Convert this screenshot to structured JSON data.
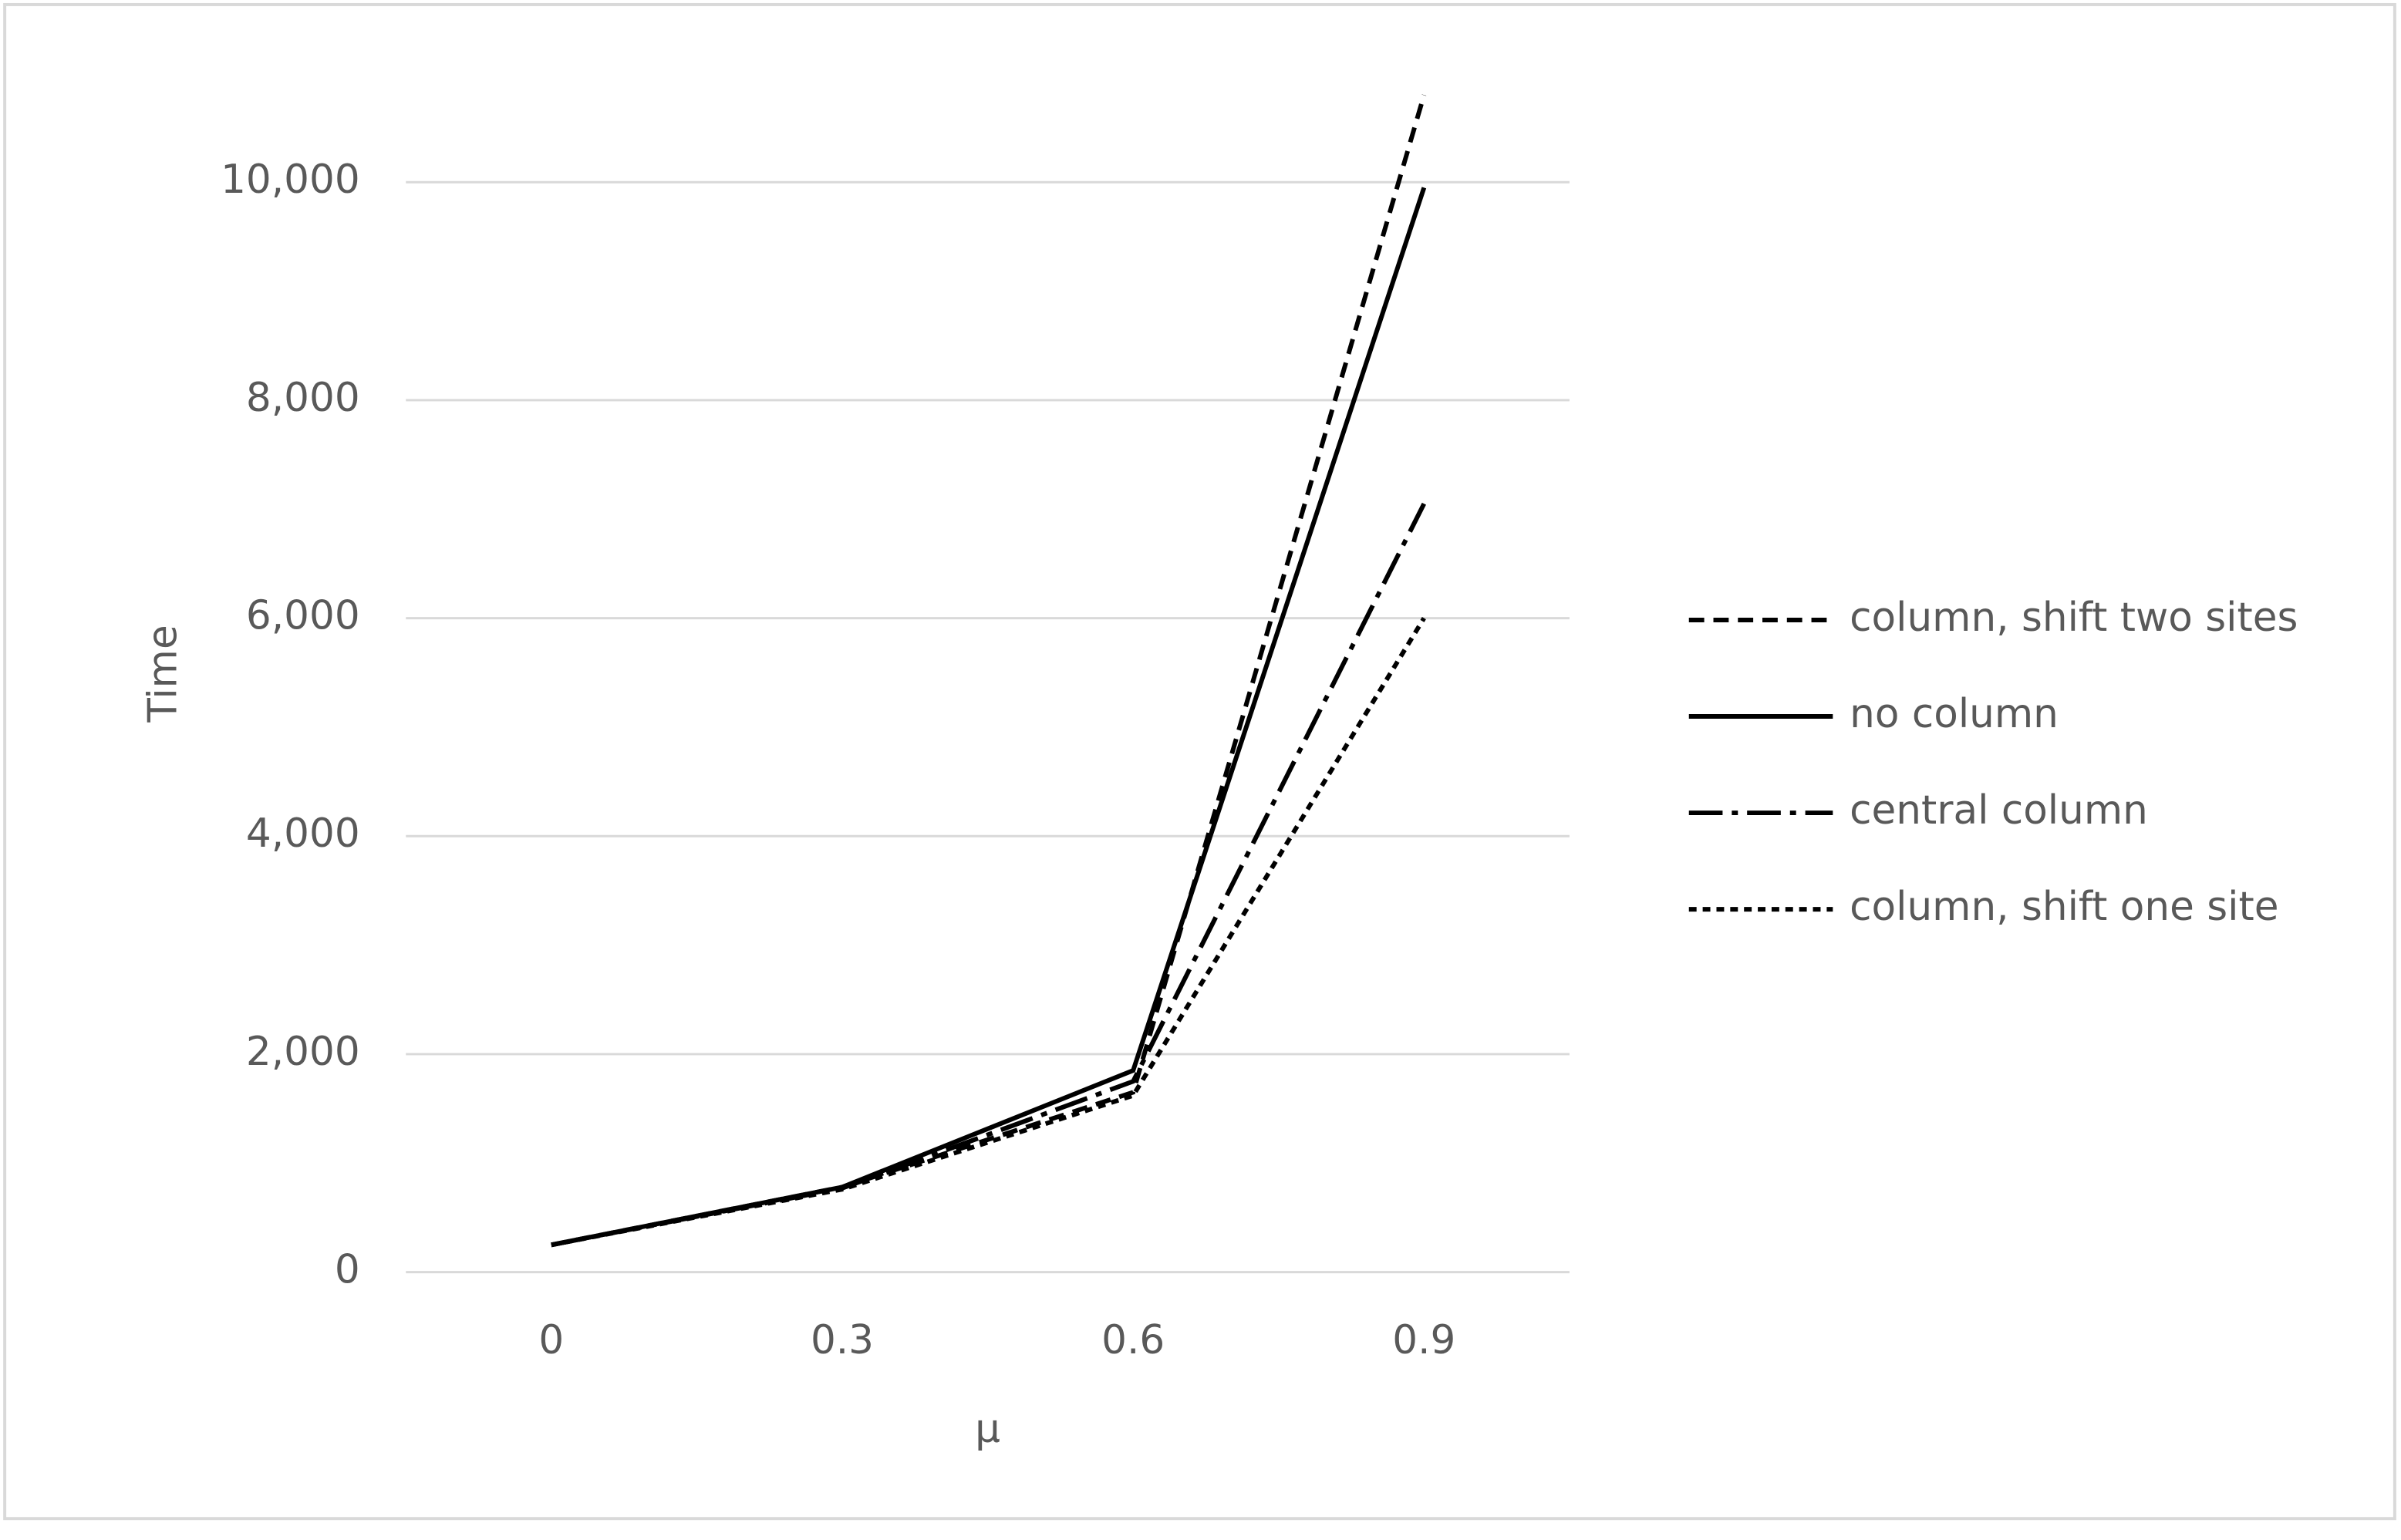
{
  "chart_data": {
    "type": "line",
    "x_label": "μ",
    "y_label": "Time",
    "categories": [
      "0",
      "0.3",
      "0.6",
      "0.9"
    ],
    "series": [
      {
        "name": "column, shift two sites",
        "color": "#000000",
        "dash": "10,6",
        "values": [
          250,
          780,
          1650,
          10800
        ]
      },
      {
        "name": "no column",
        "color": "#000000",
        "dash": "none",
        "values": [
          250,
          780,
          1850,
          9950
        ]
      },
      {
        "name": "central column",
        "color": "#000000",
        "dash": "22,6,4,6",
        "values": [
          250,
          770,
          1750,
          7050
        ]
      },
      {
        "name": "column, shift one site",
        "color": "#000000",
        "dash": "5,4",
        "values": [
          250,
          760,
          1620,
          6000
        ]
      }
    ],
    "ylim": [
      0,
      10000
    ],
    "yticks": [
      0,
      {
        "value": 2000,
        "label": "2,000"
      },
      {
        "value": 4000,
        "label": "4,000"
      },
      {
        "value": 6000,
        "label": "6,000"
      },
      {
        "value": 8000,
        "label": "8,000"
      },
      {
        "value": 10000,
        "label": "10,000"
      }
    ],
    "grid": true,
    "legend": "right"
  }
}
